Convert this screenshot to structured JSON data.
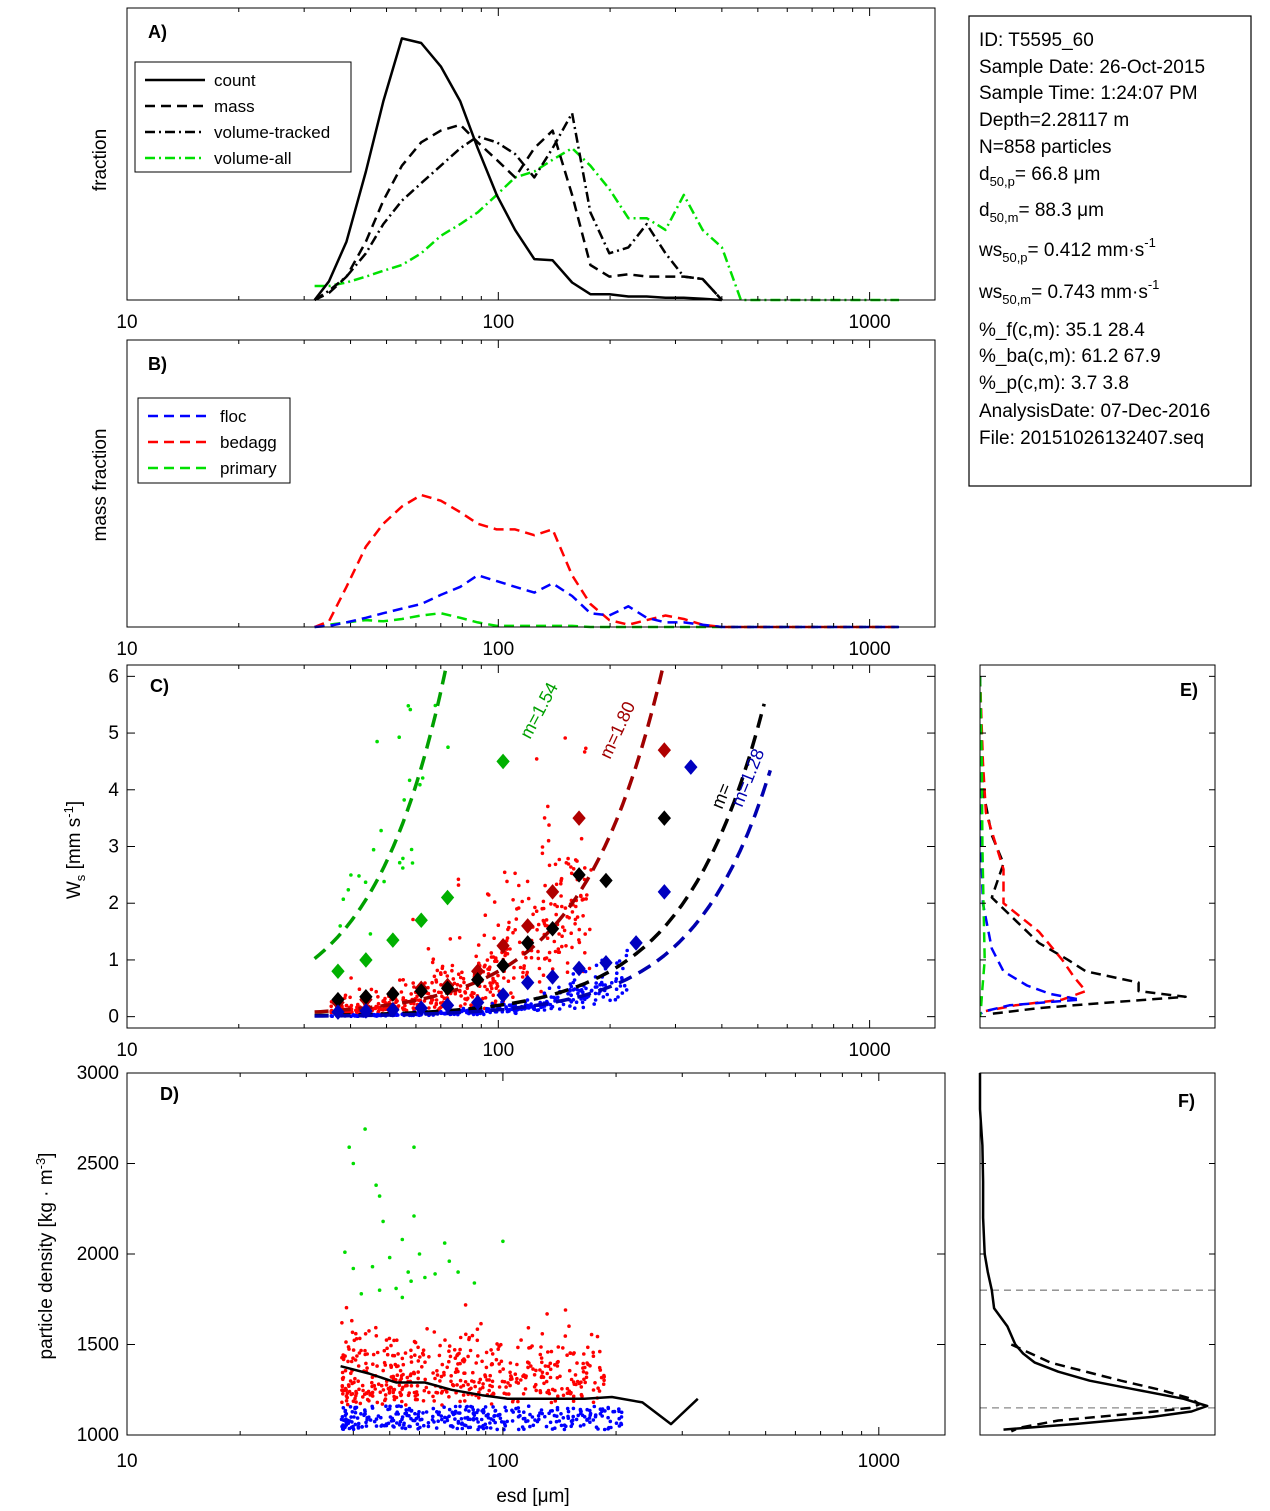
{
  "info_box": {
    "id": "ID: T5595_60",
    "sample_date": "Sample Date: 26-Oct-2015",
    "sample_time": "Sample Time:  1:24:07 PM",
    "depth": "Depth=2.28117 m",
    "n_particles": "N=858 particles",
    "d50p_base": "d",
    "d50p_sub": "50,p",
    "d50p_rest": "=  66.8 μm",
    "d50m_base": "d",
    "d50m_sub": "50,m",
    "d50m_rest": "=  88.3 μm",
    "ws50p_base": "ws",
    "ws50p_sub": "50,p",
    "ws50p_rest": "= 0.412 mm·s",
    "ws50p_sup": "-1",
    "ws50m_base": "ws",
    "ws50m_sub": "50,m",
    "ws50m_rest": "= 0.743 mm·s",
    "ws50m_sup": "-1",
    "pct_f": "%_f(c,m): 35.1 28.4",
    "pct_ba": "%_ba(c,m): 61.2 67.9",
    "pct_p": "%_p(c,m): 3.7 3.8",
    "analysis_date": "AnalysisDate: 07-Dec-2016",
    "file": "File: 20151026132407.seq"
  },
  "panel_labels": {
    "a": "A)",
    "b": "B)",
    "c": "C)",
    "d": "D)",
    "e": "E)",
    "f": "F)"
  },
  "axes": {
    "a_ylabel": "fraction",
    "b_ylabel": "mass fraction",
    "c_ylabel_base": "W",
    "c_ylabel_sub": "s",
    "c_ylabel_rest": " [mm s",
    "c_ylabel_sup": "-1",
    "c_ylabel_end": "]",
    "d_ylabel_base": "particle density [kg · m",
    "d_ylabel_sup": "-3",
    "d_ylabel_end": "]",
    "xlabel_base": "esd [",
    "xlabel_unit": "μm",
    "xlabel_end": "]",
    "x_tick_labels": [
      "10",
      "100",
      "1000"
    ],
    "c_y_tick_labels": [
      "0",
      "1",
      "2",
      "3",
      "4",
      "5",
      "6"
    ],
    "d_y_tick_labels": [
      "1000",
      "1500",
      "2000",
      "2500",
      "3000"
    ]
  },
  "legend_a": [
    {
      "label": "count",
      "color": "#000000",
      "style": "solid"
    },
    {
      "label": "mass",
      "color": "#000000",
      "style": "dash"
    },
    {
      "label": "volume-tracked",
      "color": "#000000",
      "style": "dashdot"
    },
    {
      "label": "volume-all",
      "color": "#00e000",
      "style": "dashdot"
    }
  ],
  "legend_b": [
    {
      "label": "floc",
      "color": "#0000ff",
      "style": "dash"
    },
    {
      "label": "bedagg",
      "color": "#ff0000",
      "style": "dash"
    },
    {
      "label": "primary",
      "color": "#00e000",
      "style": "dash"
    }
  ],
  "colors": {
    "floc": "#0000ff",
    "bedagg": "#ff0000",
    "primary": "#00dd00",
    "fit_primary": "#00a000",
    "fit_bedagg": "#a00000",
    "fit_floc": "#0000b0",
    "fit_all": "#000000"
  },
  "chart_data": [
    {
      "panel": "A",
      "type": "line",
      "xscale": "log",
      "xlim": [
        10,
        1500
      ],
      "ylim": [
        0,
        0.25
      ],
      "ylabel": "fraction",
      "series": [
        {
          "name": "count",
          "x": [
            32,
            35,
            39,
            44,
            49,
            55,
            62,
            70,
            79,
            88,
            99,
            111,
            125,
            140,
            158,
            177,
            199,
            224,
            251,
            282,
            316,
            355,
            400
          ],
          "y": [
            0,
            0.016,
            0.05,
            0.11,
            0.17,
            0.224,
            0.22,
            0.2,
            0.17,
            0.13,
            0.09,
            0.06,
            0.035,
            0.034,
            0.015,
            0.005,
            0.005,
            0.003,
            0.003,
            0.002,
            0.002,
            0.001,
            0
          ]
        },
        {
          "name": "mass",
          "x": [
            32,
            35,
            39,
            44,
            49,
            55,
            62,
            70,
            79,
            88,
            99,
            111,
            125,
            140,
            158,
            177,
            199,
            224,
            251,
            282,
            316,
            355,
            400
          ],
          "y": [
            0,
            0.006,
            0.02,
            0.05,
            0.085,
            0.115,
            0.135,
            0.145,
            0.15,
            0.135,
            0.12,
            0.105,
            0.13,
            0.145,
            0.09,
            0.03,
            0.02,
            0.022,
            0.02,
            0.02,
            0.02,
            0.018,
            0
          ]
        },
        {
          "name": "volume-tracked",
          "x": [
            32,
            35,
            39,
            44,
            49,
            55,
            62,
            70,
            79,
            88,
            99,
            111,
            125,
            140,
            158,
            177,
            199,
            224,
            251,
            282,
            316,
            355,
            400
          ],
          "y": [
            0,
            0.008,
            0.02,
            0.04,
            0.065,
            0.085,
            0.1,
            0.115,
            0.13,
            0.14,
            0.135,
            0.125,
            0.105,
            0.13,
            0.16,
            0.075,
            0.04,
            0.045,
            0.065,
            0.04,
            0.02,
            0.018,
            0
          ]
        },
        {
          "name": "volume-all",
          "x": [
            32,
            35,
            39,
            44,
            49,
            55,
            62,
            70,
            79,
            88,
            99,
            111,
            125,
            140,
            158,
            177,
            199,
            224,
            251,
            282,
            316,
            355,
            400,
            450,
            550,
            700,
            900,
            1200
          ],
          "y": [
            0.012,
            0.012,
            0.015,
            0.02,
            0.025,
            0.03,
            0.04,
            0.055,
            0.065,
            0.075,
            0.09,
            0.105,
            0.11,
            0.12,
            0.13,
            0.115,
            0.095,
            0.07,
            0.07,
            0.06,
            0.09,
            0.06,
            0.045,
            0,
            0,
            0,
            0,
            0
          ]
        }
      ]
    },
    {
      "panel": "B",
      "type": "line",
      "xscale": "log",
      "xlim": [
        10,
        1500
      ],
      "ylim": [
        0,
        0.25
      ],
      "ylabel": "mass fraction",
      "series": [
        {
          "name": "floc",
          "x": [
            32,
            35,
            39,
            44,
            49,
            55,
            62,
            70,
            79,
            88,
            99,
            111,
            125,
            140,
            158,
            177,
            199,
            224,
            251,
            282,
            316,
            355,
            400,
            500,
            700,
            1000,
            1200
          ],
          "y": [
            0,
            0.001,
            0.004,
            0.008,
            0.012,
            0.016,
            0.02,
            0.028,
            0.035,
            0.045,
            0.04,
            0.035,
            0.03,
            0.038,
            0.027,
            0.012,
            0.01,
            0.018,
            0.008,
            0.004,
            0.004,
            0.002,
            0,
            0,
            0,
            0,
            0
          ]
        },
        {
          "name": "bedagg",
          "x": [
            32,
            35,
            39,
            44,
            49,
            55,
            62,
            70,
            79,
            88,
            99,
            111,
            125,
            140,
            158,
            177,
            199,
            224,
            251,
            282,
            316,
            355,
            400,
            500,
            700,
            1000,
            1200
          ],
          "y": [
            0,
            0.005,
            0.035,
            0.07,
            0.09,
            0.105,
            0.115,
            0.11,
            0.1,
            0.09,
            0.085,
            0.085,
            0.08,
            0.085,
            0.045,
            0.02,
            0.006,
            0.002,
            0.006,
            0.01,
            0.007,
            0.002,
            0,
            0,
            0,
            0,
            0
          ]
        },
        {
          "name": "primary",
          "x": [
            32,
            35,
            39,
            44,
            49,
            55,
            62,
            70,
            79,
            88,
            99,
            111,
            125,
            140,
            158,
            177,
            199,
            224,
            251,
            282,
            316,
            355,
            400,
            500,
            700,
            1000,
            1200
          ],
          "y": [
            0,
            0.002,
            0.004,
            0.006,
            0.005,
            0.007,
            0.01,
            0.012,
            0.008,
            0.004,
            0.001,
            0.001,
            0.001,
            0.001,
            0.001,
            0,
            0,
            0,
            0,
            0,
            0,
            0,
            0,
            0,
            0,
            0,
            0
          ]
        }
      ]
    },
    {
      "panel": "C",
      "type": "scatter",
      "xscale": "log",
      "xlim": [
        10,
        1500
      ],
      "ylim": [
        -0.2,
        6.2
      ],
      "ylabel": "Ws [mm s-1]",
      "fits": [
        {
          "label": "m=1.54",
          "color": "#00a000",
          "a": 0.0005,
          "b": 2.2,
          "x_start": 32,
          "x_end": 180
        },
        {
          "label": "m=1.80",
          "color": "#a00000",
          "a": 8e-05,
          "b": 2.0,
          "x_start": 32,
          "x_end": 290
        },
        {
          "label": "m=",
          "color": "#000000",
          "a": 1.8e-05,
          "b": 2.02,
          "x_start": 32,
          "x_end": 520
        },
        {
          "label": "m=1.28",
          "color": "#0000b0",
          "a": 7e-06,
          "b": 2.12,
          "x_start": 32,
          "x_end": 540
        }
      ],
      "binned_means": [
        {
          "name": "primary",
          "color": "#00b000",
          "x": [
            37,
            44,
            52,
            62,
            73,
            103
          ],
          "y": [
            0.8,
            1.0,
            1.35,
            1.7,
            2.1,
            4.5
          ]
        },
        {
          "name": "bedagg",
          "color": "#b00000",
          "x": [
            37,
            44,
            52,
            62,
            73,
            88,
            103,
            120,
            140,
            165,
            280
          ],
          "y": [
            0.25,
            0.3,
            0.4,
            0.5,
            0.55,
            0.8,
            1.25,
            1.6,
            2.2,
            3.5,
            4.7
          ]
        },
        {
          "name": "all",
          "color": "#000000",
          "x": [
            37,
            44,
            52,
            62,
            73,
            88,
            103,
            120,
            140,
            165,
            195,
            280
          ],
          "y": [
            0.3,
            0.35,
            0.4,
            0.45,
            0.5,
            0.65,
            0.9,
            1.3,
            1.55,
            2.5,
            2.4,
            3.5
          ]
        },
        {
          "name": "floc",
          "color": "#0000c0",
          "x": [
            37,
            44,
            52,
            62,
            73,
            88,
            103,
            120,
            140,
            165,
            195,
            235,
            280,
            330
          ],
          "y": [
            0.08,
            0.1,
            0.12,
            0.15,
            0.2,
            0.25,
            0.38,
            0.6,
            0.7,
            0.85,
            0.95,
            1.3,
            2.2,
            4.4
          ]
        }
      ]
    },
    {
      "panel": "D",
      "type": "scatter",
      "xscale": "log",
      "xlim": [
        10,
        1500
      ],
      "ylim": [
        1000,
        3000
      ],
      "ylabel": "particle density [kg · m-3]",
      "primary_points": {
        "x": [
          43,
          40,
          39,
          46,
          47,
          58,
          38,
          40,
          54,
          60,
          72,
          50,
          56,
          62,
          66,
          76,
          84,
          58,
          48,
          52,
          45,
          42,
          70,
          100,
          54,
          47,
          57
        ],
        "y": [
          2690,
          2500,
          2590,
          2380,
          2320,
          2590,
          2010,
          1920,
          2080,
          2000,
          1960,
          1980,
          1900,
          1870,
          1890,
          1900,
          1840,
          2210,
          2180,
          1810,
          1930,
          1780,
          2060,
          2070,
          1760,
          1800,
          1850
        ]
      },
      "median_line": {
        "x": [
          37,
          44,
          52,
          62,
          73,
          88,
          103,
          120,
          140,
          165,
          195,
          235,
          280,
          330
        ],
        "y": [
          1380,
          1340,
          1290,
          1290,
          1250,
          1220,
          1200,
          1200,
          1200,
          1200,
          1210,
          1180,
          1060,
          1200
        ]
      }
    },
    {
      "panel": "E",
      "type": "line",
      "orientation": "vertical-profile",
      "ylim": [
        -0.2,
        6.2
      ],
      "series": [
        {
          "name": "all",
          "color": "#000000",
          "style": "dash",
          "y": [
            6.0,
            4.0,
            3.2,
            2.7,
            2.1,
            1.7,
            1.3,
            1.0,
            0.8,
            0.6,
            0.45,
            0.35,
            0.25,
            0.15,
            0.05
          ],
          "x": [
            0.0,
            0.005,
            0.02,
            0.04,
            0.02,
            0.06,
            0.1,
            0.15,
            0.18,
            0.27,
            0.27,
            0.35,
            0.22,
            0.1,
            0.02
          ]
        },
        {
          "name": "bedagg",
          "color": "#ff0000",
          "style": "dash",
          "y": [
            6.0,
            4.5,
            3.6,
            2.6,
            2.0,
            1.5,
            1.0,
            0.7,
            0.45,
            0.3,
            0.2,
            0.1
          ],
          "x": [
            0.0,
            0.005,
            0.01,
            0.04,
            0.04,
            0.1,
            0.14,
            0.16,
            0.18,
            0.14,
            0.06,
            0.01
          ]
        },
        {
          "name": "floc",
          "color": "#0000ff",
          "style": "dash",
          "y": [
            6.0,
            3.0,
            2.0,
            1.2,
            0.8,
            0.55,
            0.4,
            0.3,
            0.2,
            0.1,
            0.05
          ],
          "x": [
            0.0,
            0.002,
            0.005,
            0.02,
            0.04,
            0.08,
            0.12,
            0.17,
            0.05,
            0.01,
            0.0
          ]
        },
        {
          "name": "primary",
          "color": "#00dd00",
          "style": "dash",
          "y": [
            6.0,
            4.5,
            3.0,
            2.0,
            1.0,
            0.5,
            0.2,
            0.0
          ],
          "x": [
            0.0,
            0.003,
            0.004,
            0.006,
            0.008,
            0.004,
            0.002,
            0.0
          ]
        }
      ],
      "xlim": [
        0,
        0.4
      ]
    },
    {
      "panel": "F",
      "type": "line",
      "orientation": "vertical-profile",
      "ylim": [
        1000,
        3000
      ],
      "xlim": [
        0,
        0.3
      ],
      "reference_lines_y": [
        1800,
        1150
      ],
      "series": [
        {
          "name": "solid",
          "color": "#000000",
          "style": "solid",
          "y": [
            3000,
            2800,
            2600,
            2400,
            2200,
            2000,
            1900,
            1800,
            1700,
            1600,
            1500,
            1450,
            1400,
            1350,
            1300,
            1250,
            1200,
            1160,
            1130,
            1100,
            1060,
            1030
          ],
          "x": [
            0.0,
            0.0,
            0.003,
            0.004,
            0.004,
            0.006,
            0.01,
            0.015,
            0.018,
            0.035,
            0.045,
            0.055,
            0.07,
            0.1,
            0.14,
            0.2,
            0.26,
            0.29,
            0.27,
            0.22,
            0.12,
            0.03
          ]
        },
        {
          "name": "dashed",
          "color": "#000000",
          "style": "dash",
          "y": [
            1500,
            1400,
            1300,
            1250,
            1200,
            1170,
            1150,
            1120,
            1080,
            1040,
            1020
          ],
          "x": [
            0.04,
            0.09,
            0.18,
            0.23,
            0.27,
            0.28,
            0.27,
            0.2,
            0.1,
            0.05,
            0.04
          ]
        }
      ]
    }
  ]
}
